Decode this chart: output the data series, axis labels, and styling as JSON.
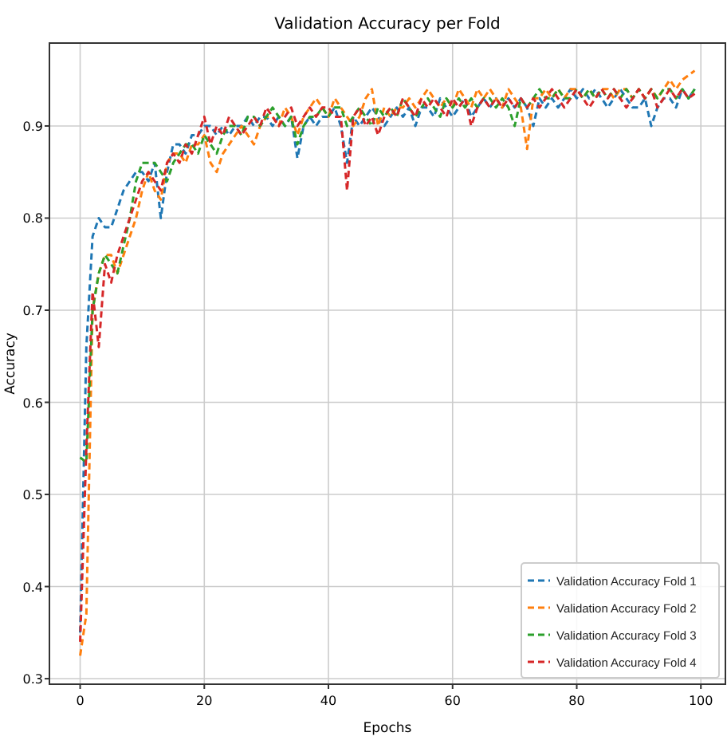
{
  "chart_data": {
    "type": "line",
    "title": "Validation Accuracy per Fold",
    "xlabel": "Epochs",
    "ylabel": "Accuracy",
    "x": [
      0,
      1,
      2,
      3,
      4,
      5,
      6,
      7,
      8,
      9,
      10,
      11,
      12,
      13,
      14,
      15,
      16,
      17,
      18,
      19,
      20,
      21,
      22,
      23,
      24,
      25,
      26,
      27,
      28,
      29,
      30,
      31,
      32,
      33,
      34,
      35,
      36,
      37,
      38,
      39,
      40,
      41,
      42,
      43,
      44,
      45,
      46,
      47,
      48,
      49,
      50,
      51,
      52,
      53,
      54,
      55,
      56,
      57,
      58,
      59,
      60,
      61,
      62,
      63,
      64,
      65,
      66,
      67,
      68,
      69,
      70,
      71,
      72,
      73,
      74,
      75,
      76,
      77,
      78,
      79,
      80,
      81,
      82,
      83,
      84,
      85,
      86,
      87,
      88,
      89,
      90,
      91,
      92,
      93,
      94,
      95,
      96,
      97,
      98,
      99
    ],
    "xlim": [
      -4.95,
      103.95
    ],
    "xticks": [
      0,
      20,
      40,
      60,
      80,
      100
    ],
    "ylim": [
      0.294,
      0.99
    ],
    "yticks": [
      0.3,
      0.4,
      0.5,
      0.6,
      0.7,
      0.8,
      0.9
    ],
    "grid": true,
    "legend": "bottom right",
    "line_style": "dashed",
    "series": [
      {
        "name": "Validation Accuracy Fold 1",
        "color": "#1f77b4",
        "values": [
          0.35,
          0.66,
          0.78,
          0.8,
          0.79,
          0.79,
          0.81,
          0.83,
          0.84,
          0.85,
          0.85,
          0.84,
          0.86,
          0.8,
          0.85,
          0.88,
          0.88,
          0.87,
          0.89,
          0.89,
          0.9,
          0.9,
          0.89,
          0.9,
          0.89,
          0.9,
          0.9,
          0.91,
          0.9,
          0.91,
          0.91,
          0.9,
          0.91,
          0.9,
          0.91,
          0.865,
          0.9,
          0.91,
          0.9,
          0.91,
          0.91,
          0.92,
          0.9,
          0.86,
          0.91,
          0.9,
          0.91,
          0.92,
          0.91,
          0.9,
          0.91,
          0.92,
          0.91,
          0.92,
          0.9,
          0.92,
          0.92,
          0.91,
          0.93,
          0.92,
          0.91,
          0.92,
          0.93,
          0.91,
          0.92,
          0.93,
          0.92,
          0.93,
          0.92,
          0.93,
          0.92,
          0.93,
          0.92,
          0.9,
          0.93,
          0.92,
          0.93,
          0.92,
          0.93,
          0.94,
          0.93,
          0.94,
          0.93,
          0.94,
          0.93,
          0.92,
          0.93,
          0.94,
          0.93,
          0.92,
          0.92,
          0.93,
          0.9,
          0.92,
          0.93,
          0.93,
          0.92,
          0.94,
          0.93,
          0.94
        ]
      },
      {
        "name": "Validation Accuracy Fold 2",
        "color": "#ff7f0e",
        "values": [
          0.325,
          0.37,
          0.7,
          0.74,
          0.76,
          0.76,
          0.74,
          0.76,
          0.78,
          0.8,
          0.83,
          0.85,
          0.83,
          0.82,
          0.86,
          0.87,
          0.87,
          0.86,
          0.88,
          0.88,
          0.89,
          0.86,
          0.85,
          0.87,
          0.88,
          0.89,
          0.9,
          0.89,
          0.88,
          0.9,
          0.91,
          0.91,
          0.9,
          0.92,
          0.91,
          0.89,
          0.91,
          0.92,
          0.93,
          0.92,
          0.91,
          0.93,
          0.92,
          0.91,
          0.9,
          0.91,
          0.93,
          0.94,
          0.9,
          0.92,
          0.91,
          0.92,
          0.92,
          0.93,
          0.92,
          0.93,
          0.94,
          0.93,
          0.92,
          0.93,
          0.92,
          0.94,
          0.93,
          0.92,
          0.94,
          0.93,
          0.94,
          0.93,
          0.92,
          0.94,
          0.93,
          0.92,
          0.875,
          0.93,
          0.93,
          0.94,
          0.93,
          0.94,
          0.93,
          0.94,
          0.94,
          0.93,
          0.94,
          0.93,
          0.94,
          0.94,
          0.93,
          0.94,
          0.94,
          0.93,
          0.94,
          0.93,
          0.94,
          0.93,
          0.94,
          0.95,
          0.94,
          0.95,
          0.955,
          0.96
        ]
      },
      {
        "name": "Validation Accuracy Fold 3",
        "color": "#2ca02c",
        "values": [
          0.54,
          0.535,
          0.7,
          0.74,
          0.76,
          0.75,
          0.74,
          0.77,
          0.8,
          0.84,
          0.86,
          0.86,
          0.86,
          0.85,
          0.84,
          0.86,
          0.87,
          0.88,
          0.88,
          0.87,
          0.89,
          0.88,
          0.87,
          0.89,
          0.9,
          0.9,
          0.89,
          0.91,
          0.91,
          0.9,
          0.91,
          0.92,
          0.91,
          0.9,
          0.91,
          0.88,
          0.9,
          0.91,
          0.91,
          0.92,
          0.91,
          0.92,
          0.92,
          0.9,
          0.91,
          0.92,
          0.91,
          0.9,
          0.92,
          0.91,
          0.92,
          0.91,
          0.93,
          0.92,
          0.91,
          0.92,
          0.93,
          0.92,
          0.91,
          0.93,
          0.92,
          0.93,
          0.92,
          0.93,
          0.92,
          0.93,
          0.93,
          0.92,
          0.93,
          0.92,
          0.9,
          0.93,
          0.92,
          0.93,
          0.94,
          0.93,
          0.93,
          0.94,
          0.93,
          0.93,
          0.94,
          0.93,
          0.94,
          0.93,
          0.94,
          0.93,
          0.94,
          0.93,
          0.94,
          0.93,
          0.94,
          0.93,
          0.94,
          0.93,
          0.94,
          0.94,
          0.93,
          0.94,
          0.93,
          0.94
        ]
      },
      {
        "name": "Validation Accuracy Fold 4",
        "color": "#d62728",
        "values": [
          0.34,
          0.55,
          0.72,
          0.66,
          0.75,
          0.73,
          0.76,
          0.78,
          0.8,
          0.82,
          0.84,
          0.85,
          0.84,
          0.83,
          0.86,
          0.87,
          0.86,
          0.88,
          0.87,
          0.89,
          0.91,
          0.88,
          0.9,
          0.89,
          0.91,
          0.9,
          0.89,
          0.9,
          0.91,
          0.9,
          0.92,
          0.91,
          0.9,
          0.91,
          0.92,
          0.9,
          0.91,
          0.92,
          0.91,
          0.92,
          0.92,
          0.91,
          0.91,
          0.83,
          0.91,
          0.92,
          0.9,
          0.91,
          0.89,
          0.91,
          0.92,
          0.91,
          0.93,
          0.92,
          0.91,
          0.93,
          0.92,
          0.93,
          0.92,
          0.91,
          0.93,
          0.92,
          0.93,
          0.9,
          0.92,
          0.93,
          0.92,
          0.93,
          0.92,
          0.93,
          0.92,
          0.93,
          0.92,
          0.93,
          0.92,
          0.93,
          0.94,
          0.93,
          0.92,
          0.93,
          0.94,
          0.93,
          0.92,
          0.93,
          0.94,
          0.93,
          0.94,
          0.93,
          0.92,
          0.93,
          0.94,
          0.93,
          0.94,
          0.92,
          0.93,
          0.94,
          0.93,
          0.94,
          0.93,
          0.935
        ]
      }
    ]
  }
}
